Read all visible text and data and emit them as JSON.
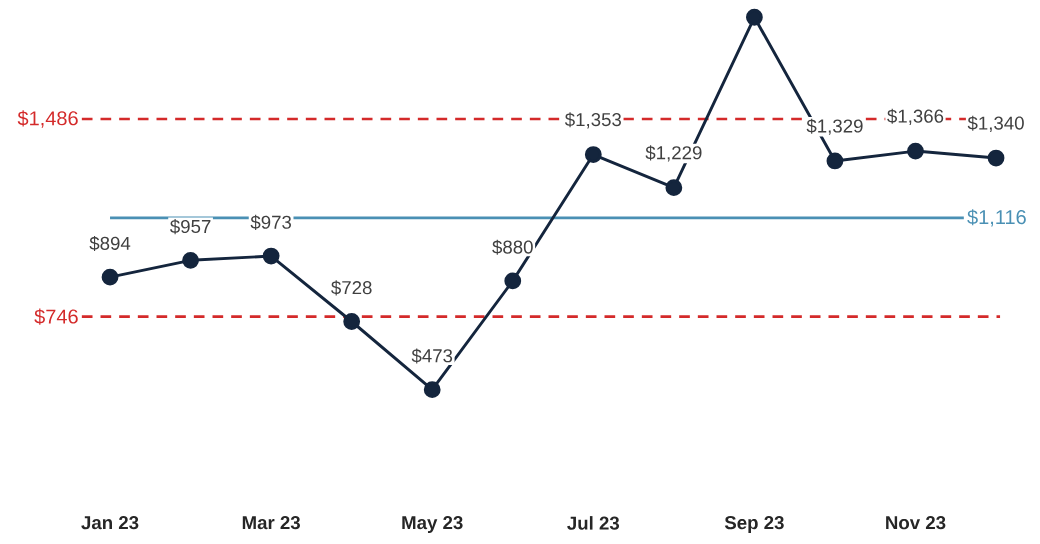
{
  "chart_data": {
    "type": "line",
    "categories": [
      "Jan 23",
      null,
      "Mar 23",
      null,
      "May 23",
      null,
      "Jul 23",
      null,
      "Sep 23",
      null,
      "Nov 23",
      null
    ],
    "series": [
      {
        "color": "#14253d",
        "values": [
          894,
          957,
          973,
          728,
          473,
          880,
          1353,
          1229,
          1867,
          1329,
          1366,
          1340
        ],
        "value_labels": [
          "$894",
          "$957",
          "$973",
          "$728",
          "$473",
          "$880",
          "$1,353",
          "$1,229",
          null,
          "$1,329",
          "$1,366",
          "$1,340"
        ]
      }
    ],
    "marker": "circle",
    "line_style": "solid",
    "tick_labels": "x",
    "ref_lines": [
      {
        "axis": "y",
        "value": 1486,
        "label": "$1,486",
        "color": "#d42a2a",
        "line_style": "dashed"
      },
      {
        "axis": "y",
        "value": 1116,
        "label": "$1,116",
        "color": "#4a90b4",
        "line_style": "solid"
      },
      {
        "axis": "y",
        "value": 746,
        "label": "$746",
        "color": "#d42a2a",
        "line_style": "dashed"
      }
    ]
  }
}
